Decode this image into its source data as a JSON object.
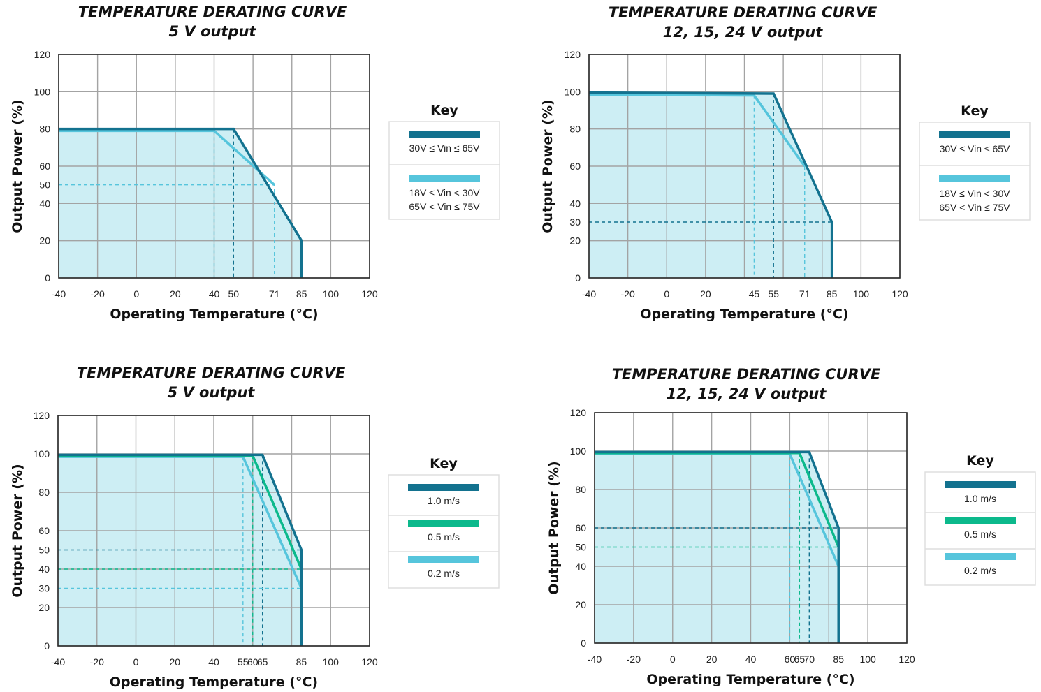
{
  "colors": {
    "dark_blue": "#13728f",
    "light_blue": "#56c5dc",
    "green": "#0cb98c",
    "area_fill": "#cdeef4",
    "grid": "#a3a3a3",
    "frame": "#2a2a2a"
  },
  "chart_data": [
    {
      "type": "line",
      "title": [
        "TEMPERATURE DERATING CURVE",
        "5 V output"
      ],
      "xlabel": "Operating Temperature (°C)",
      "ylabel": "Output Power (%)",
      "xlim": [
        -40,
        120
      ],
      "ylim": [
        0,
        120
      ],
      "xgrid": [
        -40,
        -20,
        0,
        20,
        40,
        60,
        80,
        100,
        120
      ],
      "ygrid": [
        0,
        20,
        40,
        60,
        80,
        100,
        120
      ],
      "xticks": [
        -40,
        -20,
        0,
        20,
        40,
        50,
        71,
        85,
        100,
        120
      ],
      "yticks": [
        0,
        20,
        40,
        50,
        60,
        80,
        100,
        120
      ],
      "grid": true,
      "series": [
        {
          "name": "30V ≤ Vin ≤ 65V",
          "color": "#13728f",
          "points": [
            [
              -40,
              80
            ],
            [
              50,
              80
            ],
            [
              85,
              20
            ],
            [
              85,
              0
            ]
          ]
        },
        {
          "name": "18V ≤ Vin < 30V\n65V < Vin ≤ 75V",
          "color": "#56c5dc",
          "points": [
            [
              -40,
              79
            ],
            [
              40,
              79
            ],
            [
              71,
              50
            ]
          ]
        }
      ],
      "guides": [
        {
          "color": "#13728f",
          "points": [
            [
              50,
              80
            ],
            [
              50,
              0
            ]
          ]
        },
        {
          "color": "#56c5dc",
          "points": [
            [
              -40,
              50
            ],
            [
              71,
              50
            ],
            [
              71,
              0
            ]
          ]
        },
        {
          "color": "#56c5dc",
          "points": [
            [
              40,
              79
            ],
            [
              40,
              0
            ]
          ]
        }
      ],
      "key": {
        "heading": "Key",
        "placement": "right"
      }
    },
    {
      "type": "line",
      "title": [
        "TEMPERATURE DERATING CURVE",
        "12, 15, 24 V output"
      ],
      "xlabel": "Operating Temperature (°C)",
      "ylabel": "Output Power (%)",
      "xlim": [
        -40,
        120
      ],
      "ylim": [
        0,
        120
      ],
      "xgrid": [
        -40,
        -20,
        0,
        20,
        40,
        60,
        80,
        100,
        120
      ],
      "ygrid": [
        0,
        20,
        40,
        60,
        80,
        100,
        120
      ],
      "xticks": [
        -40,
        -20,
        0,
        20,
        45,
        55,
        71,
        85,
        100,
        120
      ],
      "yticks": [
        0,
        20,
        30,
        40,
        60,
        80,
        100,
        120
      ],
      "grid": true,
      "series": [
        {
          "name": "30V ≤ Vin ≤ 65V",
          "color": "#13728f",
          "points": [
            [
              -40,
              99.5
            ],
            [
              55,
              99
            ],
            [
              85,
              30
            ],
            [
              85,
              0
            ]
          ]
        },
        {
          "name": "18V ≤ Vin < 30V\n65V < Vin ≤ 75V",
          "color": "#56c5dc",
          "points": [
            [
              -40,
              98.5
            ],
            [
              45,
              98
            ],
            [
              71,
              60
            ]
          ]
        }
      ],
      "guides": [
        {
          "color": "#13728f",
          "points": [
            [
              55,
              99
            ],
            [
              55,
              0
            ]
          ]
        },
        {
          "color": "#13728f",
          "points": [
            [
              -40,
              30
            ],
            [
              85,
              30
            ]
          ]
        },
        {
          "color": "#56c5dc",
          "points": [
            [
              45,
              98
            ],
            [
              45,
              0
            ]
          ]
        },
        {
          "color": "#56c5dc",
          "points": [
            [
              71,
              60
            ],
            [
              71,
              0
            ]
          ]
        }
      ],
      "key": {
        "heading": "Key",
        "placement": "right"
      }
    },
    {
      "type": "line",
      "title": [
        "TEMPERATURE DERATING CURVE",
        "5 V output"
      ],
      "xlabel": "Operating Temperature (°C)",
      "ylabel": "Output Power (%)",
      "xlim": [
        -40,
        120
      ],
      "ylim": [
        0,
        120
      ],
      "xgrid": [
        -40,
        -20,
        0,
        20,
        40,
        60,
        80,
        100,
        120
      ],
      "ygrid": [
        0,
        20,
        40,
        60,
        80,
        100,
        120
      ],
      "xticks": [
        -40,
        -20,
        0,
        20,
        40,
        55,
        60,
        65,
        85,
        100,
        120
      ],
      "yticks": [
        0,
        20,
        30,
        40,
        50,
        60,
        80,
        100,
        120
      ],
      "grid": true,
      "series": [
        {
          "name": "1.0 m/s",
          "color": "#13728f",
          "points": [
            [
              -40,
              99.5
            ],
            [
              65,
              99.5
            ],
            [
              85,
              50
            ],
            [
              85,
              0
            ]
          ]
        },
        {
          "name": "0.5 m/s",
          "color": "#0cb98c",
          "points": [
            [
              -40,
              99
            ],
            [
              60,
              99
            ],
            [
              85,
              40
            ]
          ]
        },
        {
          "name": "0.2 m/s",
          "color": "#56c5dc",
          "points": [
            [
              -40,
              98.5
            ],
            [
              55,
              98.5
            ],
            [
              85,
              30
            ]
          ]
        }
      ],
      "guides": [
        {
          "color": "#13728f",
          "points": [
            [
              -40,
              50
            ],
            [
              85,
              50
            ]
          ]
        },
        {
          "color": "#13728f",
          "points": [
            [
              65,
              99.5
            ],
            [
              65,
              0
            ]
          ]
        },
        {
          "color": "#0cb98c",
          "points": [
            [
              -40,
              40
            ],
            [
              85,
              40
            ]
          ]
        },
        {
          "color": "#0cb98c",
          "points": [
            [
              60,
              99
            ],
            [
              60,
              0
            ]
          ]
        },
        {
          "color": "#56c5dc",
          "points": [
            [
              -40,
              30
            ],
            [
              85,
              30
            ]
          ]
        },
        {
          "color": "#56c5dc",
          "points": [
            [
              55,
              98.5
            ],
            [
              55,
              0
            ]
          ]
        }
      ],
      "key": {
        "heading": "Key",
        "placement": "right"
      }
    },
    {
      "type": "line",
      "title": [
        "TEMPERATURE DERATING CURVE",
        "12, 15, 24 V output"
      ],
      "xlabel": "Operating Temperature (°C)",
      "ylabel": "Output Power (%)",
      "xlim": [
        -40,
        120
      ],
      "ylim": [
        0,
        120
      ],
      "xgrid": [
        -40,
        -20,
        0,
        20,
        40,
        60,
        80,
        100,
        120
      ],
      "ygrid": [
        0,
        20,
        40,
        60,
        80,
        100,
        120
      ],
      "xticks": [
        -40,
        -20,
        0,
        20,
        40,
        60,
        65,
        70,
        85,
        100,
        120
      ],
      "yticks": [
        0,
        20,
        40,
        50,
        60,
        80,
        100,
        120
      ],
      "grid": true,
      "series": [
        {
          "name": "1.0 m/s",
          "color": "#13728f",
          "points": [
            [
              -40,
              99.5
            ],
            [
              70,
              99.5
            ],
            [
              85,
              60
            ],
            [
              85,
              0
            ]
          ]
        },
        {
          "name": "0.5 m/s",
          "color": "#0cb98c",
          "points": [
            [
              -40,
              99
            ],
            [
              65,
              99
            ],
            [
              85,
              50
            ]
          ]
        },
        {
          "name": "0.2 m/s",
          "color": "#56c5dc",
          "points": [
            [
              -40,
              98.5
            ],
            [
              60,
              98.5
            ],
            [
              85,
              40
            ]
          ]
        }
      ],
      "guides": [
        {
          "color": "#13728f",
          "points": [
            [
              -40,
              60
            ],
            [
              85,
              60
            ]
          ]
        },
        {
          "color": "#13728f",
          "points": [
            [
              70,
              99.5
            ],
            [
              70,
              0
            ]
          ]
        },
        {
          "color": "#0cb98c",
          "points": [
            [
              -40,
              50
            ],
            [
              85,
              50
            ]
          ]
        },
        {
          "color": "#0cb98c",
          "points": [
            [
              65,
              99
            ],
            [
              65,
              0
            ]
          ]
        },
        {
          "color": "#56c5dc",
          "points": [
            [
              60,
              98.5
            ],
            [
              60,
              0
            ]
          ]
        }
      ],
      "key": {
        "heading": "Key",
        "placement": "right"
      }
    }
  ]
}
